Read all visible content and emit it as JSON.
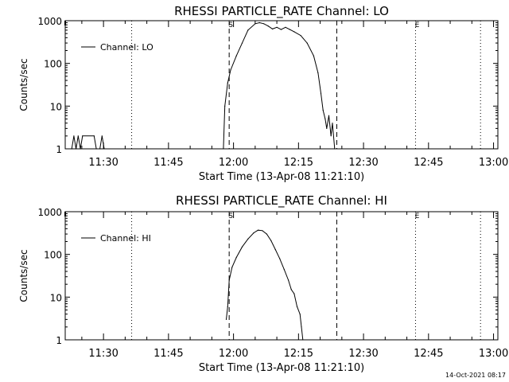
{
  "chart_data": [
    {
      "type": "line",
      "title": "RHESSI PARTICLE_RATE Channel: LO",
      "xlabel": "Start Time (13-Apr-08 11:21:10)",
      "ylabel": "Counts/sec",
      "xlim": [
        "11:21:10",
        "13:01:00"
      ],
      "ylim": [
        1,
        1000
      ],
      "yscale": "log",
      "x_ticks": [
        "11:30",
        "11:45",
        "12:00",
        "12:15",
        "12:30",
        "12:45",
        "13:00"
      ],
      "y_ticks": [
        "1",
        "10",
        "100",
        "1000"
      ],
      "legend": {
        "label": "Channel: LO",
        "placement": "top-left"
      },
      "markers": [
        {
          "label": "S",
          "time": "11:59:00",
          "style": "dashed"
        },
        {
          "label": "",
          "time": "12:23:50",
          "style": "dashed"
        },
        {
          "label": "",
          "time": "11:36:30",
          "style": "dotted"
        },
        {
          "label": "E",
          "time": "12:42:00",
          "style": "dotted"
        },
        {
          "label": "",
          "time": "12:57:00",
          "style": "dotted"
        }
      ],
      "series": [
        {
          "name": "Channel: LO",
          "points": [
            [
              "11:22:40",
              1
            ],
            [
              "11:23:10",
              2
            ],
            [
              "11:23:40",
              1
            ],
            [
              "11:24:10",
              2
            ],
            [
              "11:24:40",
              1
            ],
            [
              "11:25:10",
              2
            ],
            [
              "11:27:50",
              2
            ],
            [
              "11:28:20",
              1
            ],
            [
              "11:29:10",
              1
            ],
            [
              "11:29:40",
              2
            ],
            [
              "11:30:10",
              1
            ],
            [
              "11:57:40",
              1
            ],
            [
              "11:58:00",
              10
            ],
            [
              "11:58:40",
              35
            ],
            [
              "11:59:20",
              70
            ],
            [
              "12:00:40",
              150
            ],
            [
              "12:02:00",
              300
            ],
            [
              "12:03:20",
              600
            ],
            [
              "12:05:00",
              850
            ],
            [
              "12:06:00",
              900
            ],
            [
              "12:07:00",
              850
            ],
            [
              "12:08:00",
              750
            ],
            [
              "12:09:00",
              640
            ],
            [
              "12:10:00",
              700
            ],
            [
              "12:11:00",
              620
            ],
            [
              "12:12:00",
              700
            ],
            [
              "12:13:00",
              620
            ],
            [
              "12:14:00",
              550
            ],
            [
              "12:15:30",
              450
            ],
            [
              "12:17:00",
              300
            ],
            [
              "12:18:30",
              150
            ],
            [
              "12:19:30",
              60
            ],
            [
              "12:20:10",
              20
            ],
            [
              "12:20:40",
              8
            ],
            [
              "12:21:10",
              5
            ],
            [
              "12:21:30",
              3
            ],
            [
              "12:22:00",
              6
            ],
            [
              "12:22:30",
              2
            ],
            [
              "12:22:50",
              4
            ],
            [
              "12:23:20",
              1
            ]
          ]
        }
      ]
    },
    {
      "type": "line",
      "title": "RHESSI PARTICLE_RATE Channel: HI",
      "xlabel": "Start Time (13-Apr-08 11:21:10)",
      "ylabel": "Counts/sec",
      "xlim": [
        "11:21:10",
        "13:01:00"
      ],
      "ylim": [
        1,
        1000
      ],
      "yscale": "log",
      "x_ticks": [
        "11:30",
        "11:45",
        "12:00",
        "12:15",
        "12:30",
        "12:45",
        "13:00"
      ],
      "y_ticks": [
        "1",
        "10",
        "100",
        "1000"
      ],
      "legend": {
        "label": "Channel: HI",
        "placement": "top-left"
      },
      "markers": [
        {
          "label": "S",
          "time": "11:59:00",
          "style": "dashed"
        },
        {
          "label": "",
          "time": "12:23:50",
          "style": "dashed"
        },
        {
          "label": "",
          "time": "11:36:30",
          "style": "dotted"
        },
        {
          "label": "E",
          "time": "12:42:00",
          "style": "dotted"
        },
        {
          "label": "",
          "time": "12:57:00",
          "style": "dotted"
        }
      ],
      "series": [
        {
          "name": "Channel: HI",
          "points": [
            [
              "11:58:20",
              3
            ],
            [
              "11:58:40",
              6
            ],
            [
              "11:59:00",
              25
            ],
            [
              "11:59:40",
              50
            ],
            [
              "12:00:40",
              85
            ],
            [
              "12:02:00",
              150
            ],
            [
              "12:03:20",
              230
            ],
            [
              "12:04:40",
              320
            ],
            [
              "12:05:40",
              370
            ],
            [
              "12:06:40",
              360
            ],
            [
              "12:07:40",
              300
            ],
            [
              "12:08:40",
              210
            ],
            [
              "12:09:40",
              130
            ],
            [
              "12:10:40",
              80
            ],
            [
              "12:11:40",
              45
            ],
            [
              "12:12:40",
              25
            ],
            [
              "12:13:20",
              15
            ],
            [
              "12:14:00",
              12
            ],
            [
              "12:14:40",
              6
            ],
            [
              "12:15:20",
              4
            ],
            [
              "12:15:40",
              2
            ],
            [
              "12:16:00",
              1
            ]
          ]
        }
      ]
    }
  ],
  "footer": {
    "timestamp": "14-Oct-2021 08:17"
  },
  "colors": {
    "background": "#ffffff",
    "foreground": "#000000"
  }
}
